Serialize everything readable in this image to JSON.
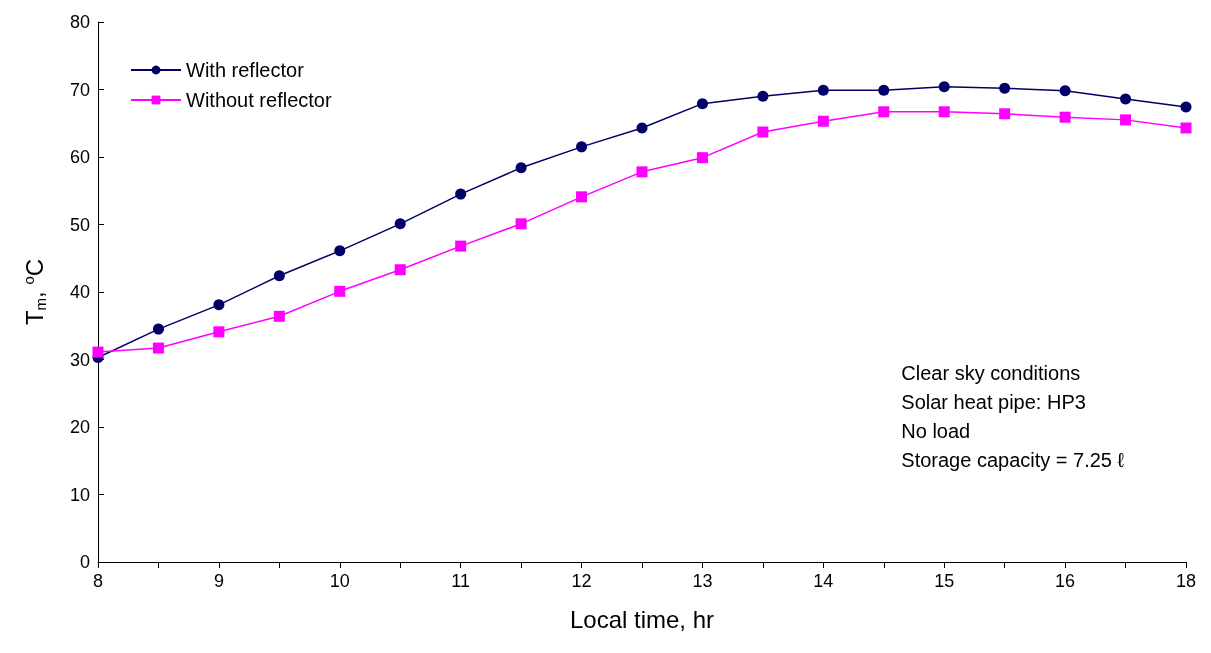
{
  "chart_data": {
    "type": "line",
    "xlabel": "Local time, hr",
    "ylabel": "T$_{m}$, $^{o}$C",
    "categories": [
      "8",
      null,
      "9",
      null,
      "10",
      null,
      "11",
      null,
      "12",
      null,
      "13",
      null,
      "14",
      null,
      "15",
      null,
      "16",
      null,
      "18"
    ],
    "series": [
      {
        "name": "With reflector",
        "color": "#000066",
        "marker": "circle",
        "values": [
          30.3,
          34.5,
          38.1,
          42.4,
          46.1,
          50.1,
          54.5,
          58.4,
          61.5,
          64.3,
          67.9,
          69.0,
          69.9,
          69.9,
          70.4,
          70.2,
          69.8,
          68.6,
          67.4
        ]
      },
      {
        "name": "Without reflector",
        "color": "#ff00ff",
        "marker": "square",
        "values": [
          31.1,
          31.7,
          34.1,
          36.4,
          40.1,
          43.3,
          46.8,
          50.1,
          54.1,
          57.8,
          59.9,
          63.7,
          65.3,
          66.7,
          66.7,
          66.4,
          65.9,
          65.5,
          64.3
        ]
      }
    ],
    "ylim": [
      0,
      80
    ],
    "yticks": [
      0,
      10,
      20,
      30,
      40,
      50,
      60,
      70,
      80
    ],
    "grid": false,
    "legend": "top left",
    "line_style": "solid",
    "annotations": [
      "Clear sky conditions",
      "Solar heat pipe: HP3",
      "No load",
      "Storage capacity = 7.25 ℓ"
    ]
  }
}
